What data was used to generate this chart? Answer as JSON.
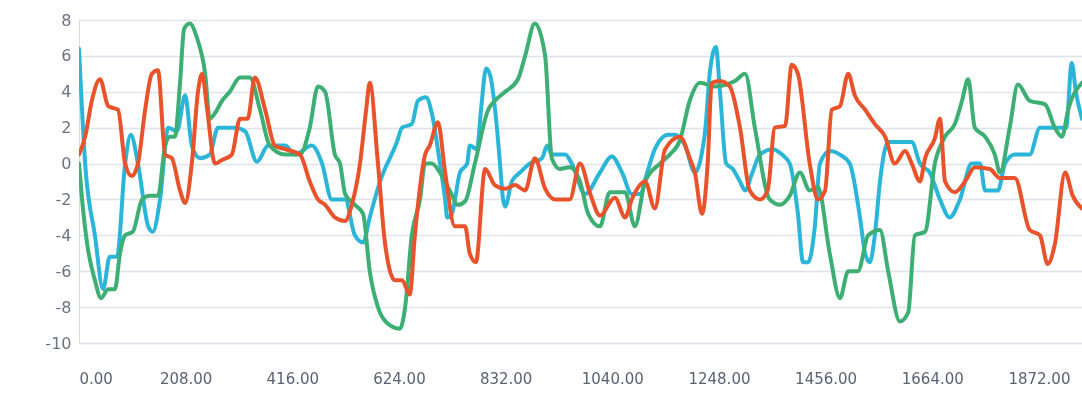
{
  "chart_data": {
    "type": "line",
    "xlim": [
      0,
      1956
    ],
    "ylim": [
      -10,
      8
    ],
    "xticks": [
      {
        "value": 0,
        "label": "0.00"
      },
      {
        "value": 208,
        "label": "208.00"
      },
      {
        "value": 416,
        "label": "416.00"
      },
      {
        "value": 624,
        "label": "624.00"
      },
      {
        "value": 832,
        "label": "832.00"
      },
      {
        "value": 1040,
        "label": "1040.00"
      },
      {
        "value": 1248,
        "label": "1248.00"
      },
      {
        "value": 1456,
        "label": "1456.00"
      },
      {
        "value": 1664,
        "label": "1664.00"
      },
      {
        "value": 1872,
        "label": "1872.00"
      }
    ],
    "yticks": [
      -10,
      -8,
      -6,
      -4,
      -2,
      0,
      2,
      4,
      6,
      8
    ],
    "grid": "y",
    "legend": false,
    "marker": "none",
    "line_style": "solid",
    "series": [
      {
        "color": "#2bb5d8",
        "x": [
          0,
          12,
          31,
          47,
          60,
          74,
          90,
          101,
          115,
          135,
          144,
          158,
          174,
          191,
          207,
          220,
          236,
          255,
          271,
          304,
          324,
          347,
          369,
          402,
          421,
          454,
          474,
          493,
          519,
          538,
          554,
          567,
          587,
          620,
          630,
          649,
          661,
          677,
          688,
          704,
          714,
          718,
          727,
          743,
          757,
          762,
          776,
          784,
          794,
          801,
          815,
          821,
          827,
          831,
          844,
          860,
          879,
          903,
          913,
          922,
          948,
          961,
          987,
          1016,
          1039,
          1059,
          1078,
          1094,
          1108,
          1123,
          1149,
          1162,
          1182,
          1201,
          1221,
          1230,
          1242,
          1250,
          1262,
          1275,
          1289,
          1299,
          1312,
          1328,
          1353,
          1371,
          1386,
          1402,
          1412,
          1422,
          1435,
          1445,
          1464,
          1484,
          1503,
          1523,
          1533,
          1542,
          1552,
          1562,
          1578,
          1611,
          1624,
          1640,
          1659,
          1679,
          1698,
          1718,
          1741,
          1757,
          1767,
          1792,
          1806,
          1825,
          1854,
          1874,
          1903,
          1925,
          1936,
          1944,
          1956
        ],
        "values": [
          6.4,
          0,
          -4,
          -7,
          -5.2,
          -5.2,
          0,
          1.6,
          0,
          -3.5,
          -3.8,
          -2,
          2,
          1.8,
          3.8,
          1,
          0.3,
          0.5,
          2,
          2,
          1.8,
          0.1,
          1,
          1,
          0.5,
          1,
          0,
          -2,
          -2,
          -4,
          -4.4,
          -3,
          -1,
          1.2,
          2,
          2.2,
          3.5,
          3.7,
          2.8,
          0,
          -2,
          -3,
          -2.8,
          -0.5,
          0,
          1,
          0.8,
          3,
          5.3,
          5,
          2,
          0,
          -2,
          -2.4,
          -1,
          -0.5,
          0,
          0.3,
          1,
          0.5,
          0.5,
          0,
          -1.7,
          -0.5,
          0.4,
          -0.5,
          -1.7,
          -1.7,
          -0.5,
          0.8,
          1.6,
          1.6,
          1,
          -0.5,
          1.8,
          5,
          6.5,
          4,
          0,
          -0.3,
          -1,
          -1.5,
          -0.6,
          0.5,
          0.8,
          0.5,
          0,
          -2.8,
          -5.5,
          -5.5,
          -3.5,
          0,
          0.7,
          0.5,
          0,
          -3,
          -5,
          -5.5,
          -4,
          -1,
          1.2,
          1.2,
          1.2,
          0,
          -0.5,
          -2,
          -3,
          -2,
          0,
          0,
          -1.5,
          -1.5,
          0,
          0.5,
          0.5,
          2,
          2,
          2,
          5.6,
          4,
          2.5
        ]
      },
      {
        "color": "#3daf74",
        "x": [
          0,
          6,
          16,
          31,
          43,
          57,
          70,
          80,
          90,
          105,
          123,
          138,
          154,
          168,
          177,
          187,
          197,
          205,
          216,
          230,
          246,
          255,
          265,
          279,
          294,
          314,
          333,
          353,
          372,
          402,
          431,
          450,
          466,
          480,
          499,
          509,
          519,
          538,
          554,
          567,
          583,
          606,
          626,
          636,
          649,
          665,
          675,
          688,
          704,
          723,
          739,
          753,
          772,
          798,
          811,
          831,
          856,
          870,
          889,
          909,
          922,
          938,
          957,
          977,
          993,
          1016,
          1035,
          1065,
          1084,
          1104,
          1133,
          1152,
          1172,
          1191,
          1211,
          1240,
          1279,
          1299,
          1318,
          1347,
          1367,
          1386,
          1406,
          1425,
          1441,
          1464,
          1484,
          1500,
          1519,
          1539,
          1562,
          1578,
          1601,
          1617,
          1630,
          1650,
          1669,
          1689,
          1708,
          1722,
          1734,
          1747,
          1767,
          1786,
          1796,
          1815,
          1831,
          1854,
          1884,
          1903,
          1917,
          1929,
          1956
        ],
        "values": [
          0,
          -2,
          -4.5,
          -6.5,
          -7.5,
          -7,
          -7,
          -5,
          -4,
          -3.8,
          -2,
          -1.8,
          -1.8,
          1,
          1.5,
          1.5,
          4.5,
          7.5,
          7.8,
          7,
          5,
          2.5,
          2.8,
          3.5,
          4,
          4.8,
          4.8,
          3,
          1,
          0.5,
          0.5,
          2,
          4.3,
          4,
          0.5,
          0,
          -1.7,
          -2.3,
          -2.8,
          -6,
          -8,
          -9,
          -9.2,
          -8,
          -4,
          -2,
          0,
          0,
          -0.5,
          -1.5,
          -2.3,
          -2.1,
          0,
          3,
          3.5,
          4,
          4.7,
          6,
          7.8,
          6,
          0.3,
          -0.3,
          -0.2,
          -1,
          -2.8,
          -3.5,
          -1.6,
          -1.6,
          -3.5,
          -1,
          0,
          0.5,
          1.3,
          3.5,
          4.5,
          4.3,
          4.6,
          5,
          2,
          -2,
          -2.3,
          -1.8,
          -0.5,
          -1.5,
          -1.3,
          -5,
          -7.5,
          -6,
          -6,
          -4,
          -3.7,
          -6,
          -8.8,
          -8.3,
          -4,
          -3.8,
          0,
          1.5,
          2.2,
          3.5,
          4.7,
          2,
          1.5,
          0.5,
          -0.5,
          2,
          4.4,
          3.5,
          3.3,
          2,
          1.5,
          3,
          4.5
        ]
      },
      {
        "color": "#e8532b",
        "x": [
          0,
          12,
          25,
          41,
          57,
          76,
          90,
          103,
          115,
          129,
          142,
          154,
          168,
          181,
          197,
          207,
          220,
          232,
          240,
          250,
          265,
          279,
          298,
          314,
          329,
          343,
          363,
          382,
          402,
          431,
          450,
          466,
          480,
          499,
          519,
          532,
          548,
          560,
          567,
          583,
          597,
          616,
          630,
          645,
          655,
          675,
          684,
          700,
          714,
          733,
          753,
          762,
          774,
          792,
          811,
          831,
          850,
          870,
          889,
          909,
          928,
          957,
          977,
          997,
          1016,
          1045,
          1065,
          1078,
          1104,
          1123,
          1143,
          1172,
          1191,
          1201,
          1215,
          1226,
          1234,
          1250,
          1269,
          1289,
          1308,
          1328,
          1343,
          1357,
          1377,
          1390,
          1402,
          1425,
          1441,
          1455,
          1468,
          1484,
          1500,
          1513,
          1533,
          1552,
          1572,
          1591,
          1611,
          1624,
          1640,
          1650,
          1669,
          1679,
          1689,
          1708,
          1728,
          1747,
          1776,
          1796,
          1825,
          1854,
          1874,
          1889,
          1903,
          1923,
          1938,
          1956
        ],
        "values": [
          0.5,
          1.5,
          3.5,
          4.7,
          3.2,
          3,
          0,
          -0.7,
          0,
          3,
          5,
          5.2,
          0.5,
          0.3,
          -1.5,
          -2.2,
          0,
          4,
          5,
          3,
          0,
          0.2,
          0.5,
          2.5,
          2.5,
          4.8,
          3,
          1,
          0.8,
          0.5,
          -1,
          -2,
          -2.3,
          -3,
          -3.2,
          -2.3,
          0,
          3,
          4.5,
          0,
          -4.5,
          -6.5,
          -6.5,
          -7.3,
          -4,
          0.5,
          1,
          2.3,
          -0.5,
          -3.5,
          -3.5,
          -5,
          -5.5,
          -0.3,
          -1.2,
          -1.4,
          -1.2,
          -1.5,
          0.3,
          -1.4,
          -2,
          -2,
          0,
          -1.7,
          -2.9,
          -1.9,
          -3,
          -2,
          -1,
          -2.5,
          0.8,
          1.5,
          0.3,
          -0.5,
          -2.8,
          0,
          4.5,
          4.6,
          4.3,
          2,
          -1.5,
          -2,
          -1.5,
          2,
          2.1,
          5.5,
          5,
          0,
          -2,
          -1.5,
          3,
          3.2,
          5,
          3.8,
          3,
          2.2,
          1.5,
          0,
          0.7,
          0,
          -1,
          0.3,
          1.4,
          2.5,
          -1,
          -1.6,
          -1,
          -0.2,
          -0.3,
          -0.8,
          -0.8,
          -3.7,
          -4,
          -5.6,
          -4.5,
          -0.5,
          -1.8,
          -2.5
        ]
      }
    ]
  }
}
